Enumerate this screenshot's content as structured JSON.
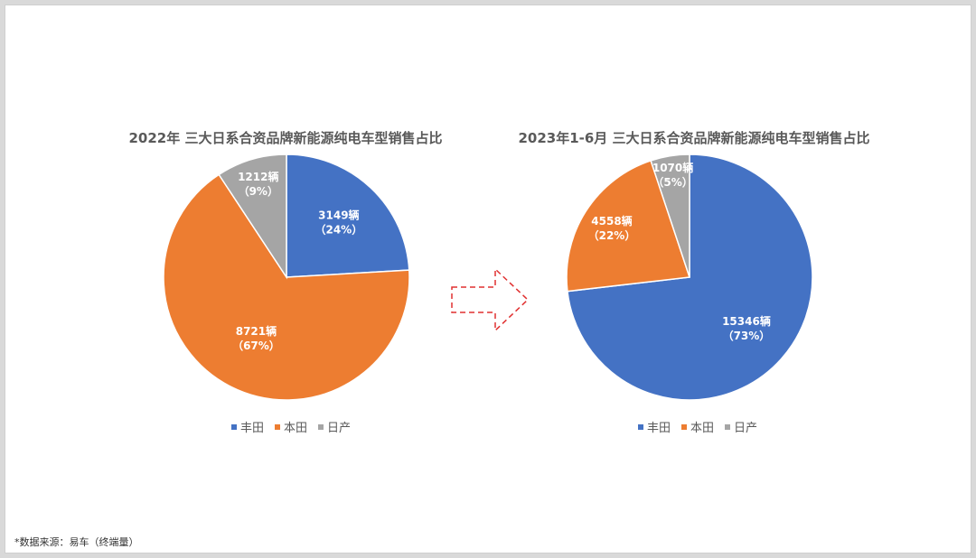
{
  "colors": {
    "toyota": "#4472C4",
    "honda": "#ED7D31",
    "nissan": "#A5A5A5",
    "arrow": "#E03030"
  },
  "legend_labels": [
    "丰田",
    "本田",
    "日产"
  ],
  "source_note": "*数据来源：易车（终端量）",
  "arrow_icon": "dashed-right-arrow-icon",
  "chart_data": [
    {
      "type": "pie",
      "title": "2022年 三大日系合资品牌新能源纯电车型销售占比",
      "slices": [
        {
          "name": "丰田",
          "value": 3149,
          "percent": 24,
          "label": "3149辆",
          "pct_label": "（24%）"
        },
        {
          "name": "本田",
          "value": 8721,
          "percent": 67,
          "label": "8721辆",
          "pct_label": "（67%）"
        },
        {
          "name": "日产",
          "value": 1212,
          "percent": 9,
          "label": "1212辆",
          "pct_label": "（9%）"
        }
      ],
      "legend": "bottom"
    },
    {
      "type": "pie",
      "title": "2023年1-6月 三大日系合资品牌新能源纯电车型销售占比",
      "slices": [
        {
          "name": "丰田",
          "value": 15346,
          "percent": 73,
          "label": "15346辆",
          "pct_label": "（73%）"
        },
        {
          "name": "本田",
          "value": 4558,
          "percent": 22,
          "label": "4558辆",
          "pct_label": "（22%）"
        },
        {
          "name": "日产",
          "value": 1070,
          "percent": 5,
          "label": "1070辆",
          "pct_label": "（5%）"
        }
      ],
      "legend": "bottom"
    }
  ]
}
